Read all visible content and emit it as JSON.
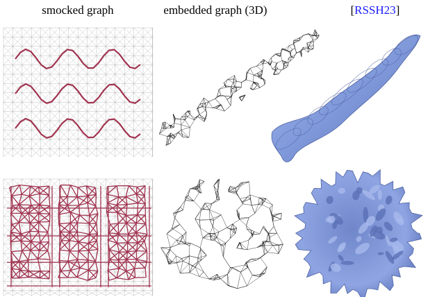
{
  "header": {
    "columns": [
      "smocked graph",
      "embedded graph (3D)"
    ],
    "citation": {
      "open": "[",
      "key": "RSSH23",
      "close": "]"
    }
  }
}
